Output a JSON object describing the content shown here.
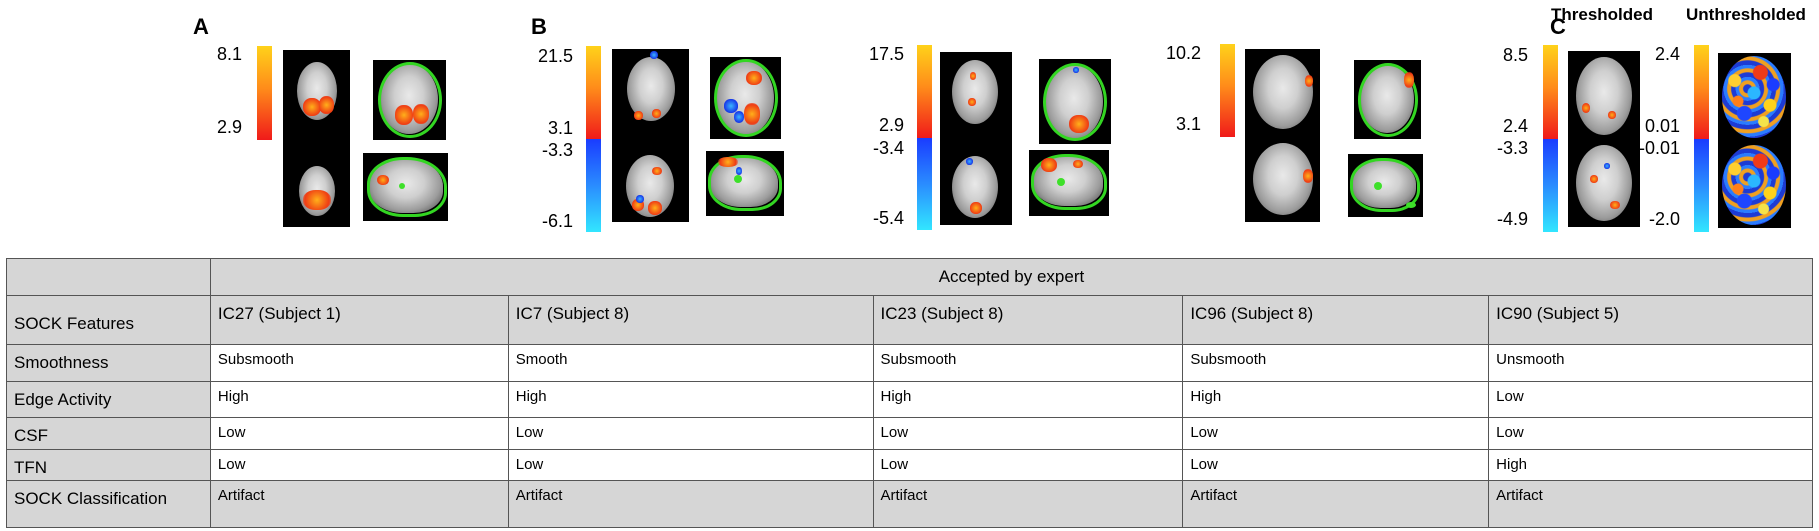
{
  "panels": {
    "a": "A",
    "b": "B",
    "c": "C"
  },
  "panel_c_headers": {
    "thresholded": "Thresholded",
    "unthresholded": "Unthresholded"
  },
  "colorbar_ticks": {
    "a": [
      "8.1",
      "2.9"
    ],
    "b1": [
      "21.5",
      "3.1",
      "-3.3",
      "-6.1"
    ],
    "b2": [
      "17.5",
      "2.9",
      "-3.4",
      "-5.4"
    ],
    "b3": [
      "10.2",
      "3.1"
    ],
    "c_thr": [
      "8.5",
      "2.4",
      "-3.3",
      "-4.9"
    ],
    "c_unthr": [
      "2.4",
      "0.01",
      "-0.01",
      "-2.0"
    ]
  },
  "colors": {
    "warm_top": "#ffd21a",
    "warm_bottom": "#f01a1a",
    "cool_top": "#1a3cff",
    "cool_bottom": "#32e6ff",
    "mask_outline": "#33d622",
    "table_grey": "#d6d6d6"
  },
  "table": {
    "group_header": "Accepted by expert",
    "features_header": "SOCK Features",
    "columns": [
      "IC27 (Subject 1)",
      "IC7 (Subject 8)",
      "IC23 (Subject 8)",
      "IC96 (Subject 8)",
      "IC90 (Subject 5)"
    ],
    "rows": [
      {
        "label": "Smoothness",
        "values": [
          "Subsmooth",
          "Smooth",
          "Subsmooth",
          "Subsmooth",
          "Unsmooth"
        ]
      },
      {
        "label": "Edge Activity",
        "values": [
          "High",
          "High",
          "High",
          "High",
          "Low"
        ]
      },
      {
        "label": "CSF",
        "values": [
          "Low",
          "Low",
          "Low",
          "Low",
          "Low"
        ]
      },
      {
        "label": "TFN",
        "values": [
          "Low",
          "Low",
          "Low",
          "Low",
          "High"
        ]
      },
      {
        "label": "SOCK Classification",
        "values": [
          "Artifact",
          "Artifact",
          "Artifact",
          "Artifact",
          "Artifact"
        ]
      }
    ]
  }
}
